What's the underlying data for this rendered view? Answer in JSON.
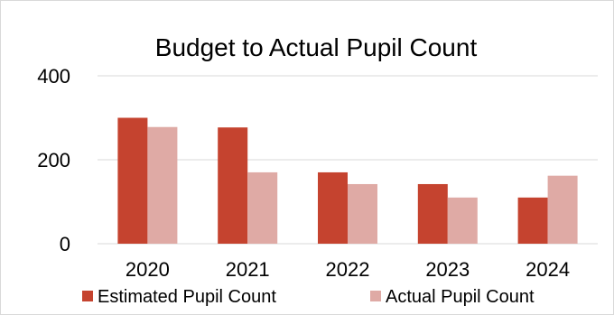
{
  "chart_data": {
    "type": "bar",
    "title": "Budget to Actual Pupil Count",
    "xlabel": "",
    "ylabel": "",
    "categories": [
      "2020",
      "2021",
      "2022",
      "2023",
      "2024"
    ],
    "series": [
      {
        "name": "Estimated Pupil Count",
        "values": [
          300,
          277,
          170,
          142,
          110
        ],
        "color": "#c5432f"
      },
      {
        "name": "Actual Pupil Count",
        "values": [
          278,
          170,
          142,
          110,
          162
        ],
        "color": "#dfaaa5"
      }
    ],
    "ylim": [
      0,
      400
    ],
    "yticks": [
      "0",
      "200",
      "400"
    ],
    "grid": true,
    "legend": "bottom"
  }
}
